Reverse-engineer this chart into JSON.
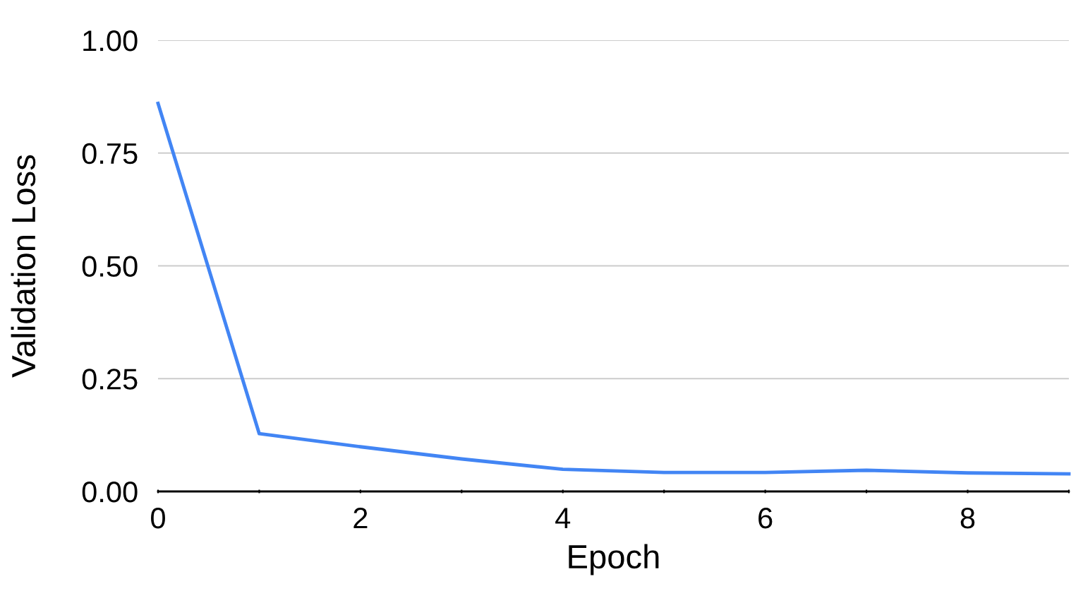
{
  "chart_data": {
    "type": "line",
    "xlabel": "Epoch",
    "ylabel": "Validation Loss",
    "x": [
      0,
      1,
      2,
      3,
      4,
      5,
      6,
      7,
      8,
      9
    ],
    "series": [
      {
        "color": "#4285f4",
        "values": [
          0.86,
          0.128,
          0.099,
          0.072,
          0.049,
          0.042,
          0.042,
          0.047,
          0.041,
          0.039
        ]
      }
    ],
    "xlim": [
      0,
      9
    ],
    "ylim": [
      0,
      1
    ],
    "xticks": [
      0,
      {
        "value": 1,
        "label": null
      },
      2,
      {
        "value": 3,
        "label": null
      },
      4,
      {
        "value": 5,
        "label": null
      },
      6,
      {
        "value": 7,
        "label": null
      },
      8,
      {
        "value": 9,
        "label": null
      }
    ],
    "yticks": [
      {
        "value": 0,
        "label": "0.00"
      },
      {
        "value": 0.25,
        "label": "0.25"
      },
      {
        "value": 0.5,
        "label": "0.50"
      },
      {
        "value": 0.75,
        "label": "0.75"
      },
      {
        "value": 1,
        "label": "1.00"
      }
    ],
    "grid": "y",
    "marker": "none",
    "line_style": "solid"
  }
}
